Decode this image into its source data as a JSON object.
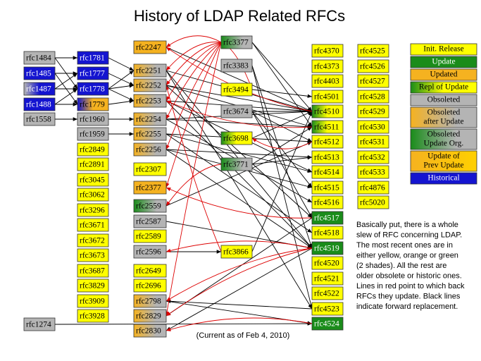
{
  "title": "History of LDAP Related RFCs",
  "footnote": "(Current as of Feb 4, 2010)",
  "description": [
    "Basically put, there is a whole",
    "slew of RFC concerning LDAP.",
    "The most recent ones are in",
    "either yellow, orange or green",
    "(2 shades).  All the rest are",
    "older obsolete or historic ones.",
    "Lines in red point to which back",
    "RFCs they update. Black lines",
    "indicate forward replacement."
  ],
  "legend": [
    [
      "Init. Release"
    ],
    [
      "Update"
    ],
    [
      "Updated"
    ],
    [
      "Repl of Update"
    ],
    [
      "Obsoleted"
    ],
    [
      "Obsoleted",
      "after Update"
    ],
    [
      "Obsoleted",
      "Update Org."
    ],
    [
      "Update of",
      "Prev Update"
    ],
    [
      "Historical"
    ]
  ],
  "nodes": [
    "rfc1484",
    "rfc1485",
    "rfc1487",
    "rfc1488",
    "rfc1558",
    "rfc1274",
    "rfc1781",
    "rfc1777",
    "rfc1778",
    "rfc1779",
    "rfc1960",
    "rfc1959",
    "rfc2849",
    "rfc2891",
    "rfc3045",
    "rfc3062",
    "rfc3296",
    "rfc3671",
    "rfc3672",
    "rfc3673",
    "rfc3687",
    "rfc3829",
    "rfc3909",
    "rfc3928",
    "rfc2247",
    "rfc2251",
    "rfc2252",
    "rfc2253",
    "rfc2254",
    "rfc2255",
    "rfc2256",
    "rfc2307",
    "rfc2377",
    "rfc2559",
    "rfc2587",
    "rfc2589",
    "rfc2596",
    "rfc2649",
    "rfc2696",
    "rfc2798",
    "rfc2829",
    "rfc2830",
    "rfc3377",
    "rfc3383",
    "rfc3494",
    "rfc3674",
    "rfc3698",
    "rfc3771",
    "rfc3866",
    "rfc4370",
    "rfc4373",
    "rfc4403",
    "rfc4501",
    "rfc4510",
    "rfc4511",
    "rfc4512",
    "rfc4513",
    "rfc4514",
    "rfc4515",
    "rfc4516",
    "rfc4517",
    "rfc4518",
    "rfc4519",
    "rfc4520",
    "rfc4521",
    "rfc4522",
    "rfc4523",
    "rfc4524",
    "rfc4525",
    "rfc4526",
    "rfc4527",
    "rfc4528",
    "rfc4529",
    "rfc4530",
    "rfc4531",
    "rfc4532",
    "rfc4533",
    "rfc4876",
    "rfc5020"
  ]
}
